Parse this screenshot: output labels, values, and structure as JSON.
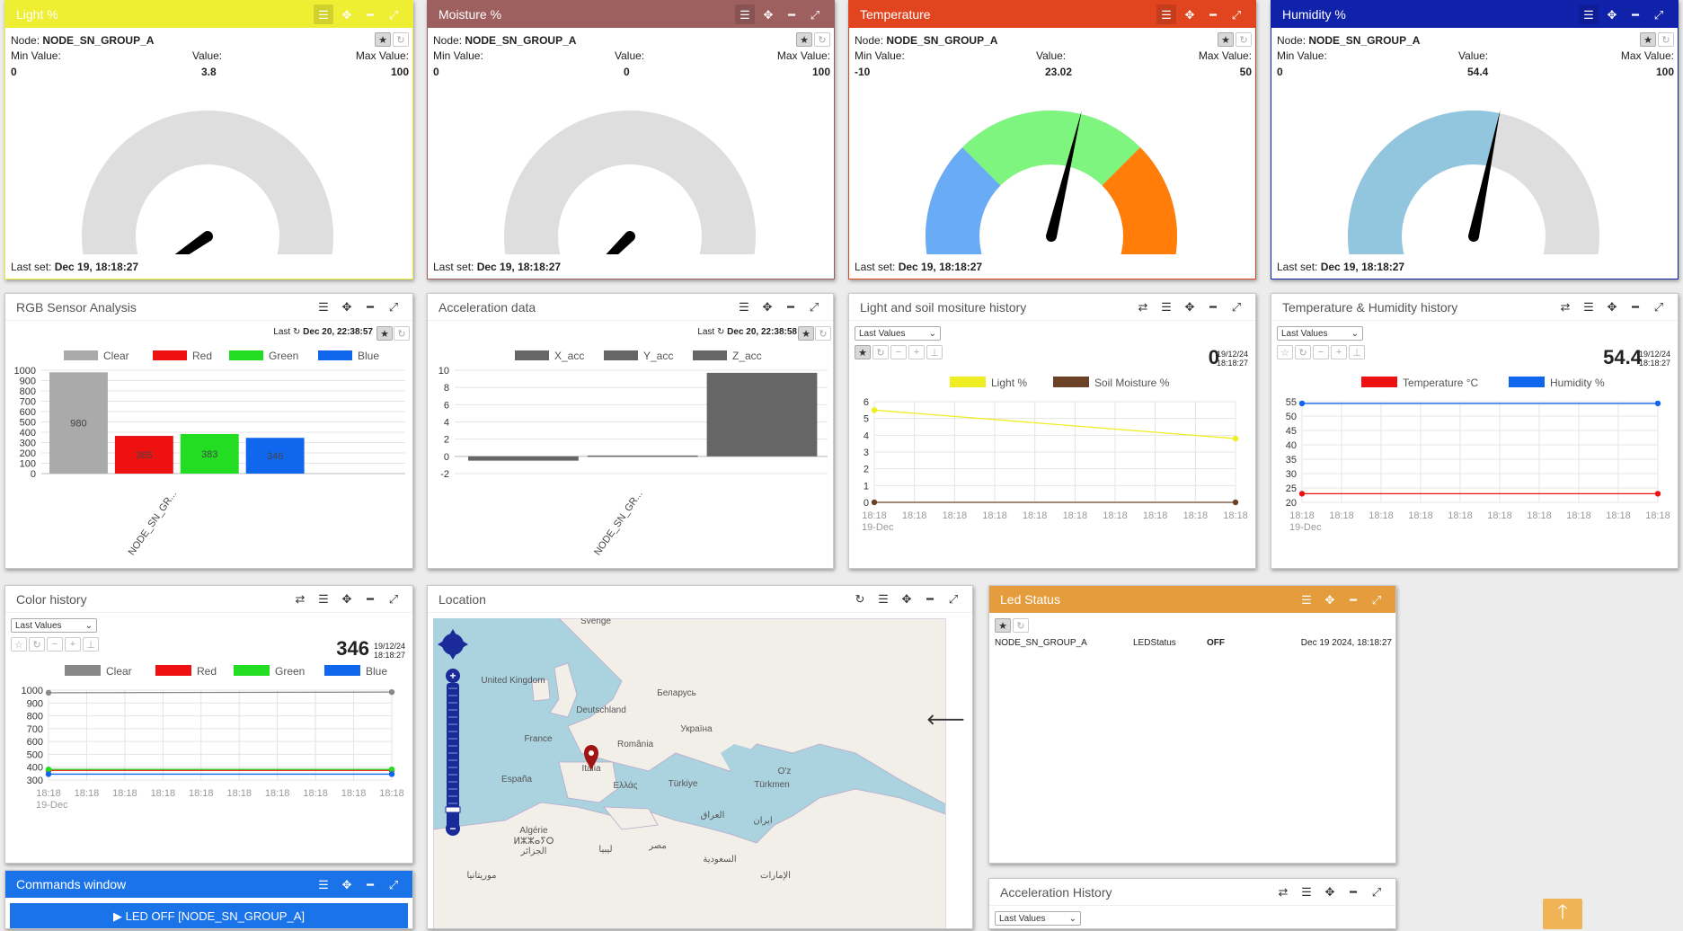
{
  "gauges": [
    {
      "title": "Light %",
      "color": "#eeee33",
      "titleColor": "#ffffff",
      "node_label": "Node:",
      "node": "NODE_SN_GROUP_A",
      "min_label": "Min Value:",
      "value_label": "Value:",
      "max_label": "Max Value:",
      "min": "0",
      "value": "3.8",
      "max": "100",
      "last_label": "Last set:",
      "last": "Dec 19, 18:18:27",
      "fill": "#92c5de"
    },
    {
      "title": "Moisture %",
      "color": "#9e5f5f",
      "titleColor": "#ffffff",
      "node_label": "Node:",
      "node": "NODE_SN_GROUP_A",
      "min_label": "Min Value:",
      "value_label": "Value:",
      "max_label": "Max Value:",
      "min": "0",
      "value": "0",
      "max": "100",
      "last_label": "Last set:",
      "last": "Dec 19, 18:18:27",
      "fill": "#92c5de"
    },
    {
      "title": "Temperature",
      "color": "#e04520",
      "titleColor": "#ffffff",
      "node_label": "Node:",
      "node": "NODE_SN_GROUP_A",
      "min_label": "Min Value:",
      "value_label": "Value:",
      "max_label": "Max Value:",
      "min": "-10",
      "value": "23.02",
      "max": "50",
      "last_label": "Last set:",
      "last": "Dec 19, 18:18:27",
      "fill": "#92c5de"
    },
    {
      "title": "Humidity %",
      "color": "#1122aa",
      "titleColor": "#ffffff",
      "node_label": "Node:",
      "node": "NODE_SN_GROUP_A",
      "min_label": "Min Value:",
      "value_label": "Value:",
      "max_label": "Max Value:",
      "min": "0",
      "value": "54.4",
      "max": "100",
      "last_label": "Last set:",
      "last": "Dec 19, 18:18:27",
      "fill": "#92c5de"
    }
  ],
  "rgb": {
    "title": "RGB Sensor Analysis",
    "last_label": "Last",
    "last": "Dec 20, 22:38:57",
    "xtick": "NODE_SN_GR..."
  },
  "acc": {
    "title": "Acceleration data",
    "last_label": "Last",
    "last": "Dec 20, 22:38:58",
    "xtick": "NODE_SN_GR..."
  },
  "light_hist": {
    "title": "Light and soil mositure history",
    "select": "Last Values",
    "big": "0",
    "date": "19/12/24",
    "time": "18:18:27",
    "date_label": "19-Dec"
  },
  "temp_hist": {
    "title": "Temperature & Humidity history",
    "select": "Last Values",
    "big": "54.4",
    "date": "19/12/24",
    "time": "18:18:27",
    "date_label": "19-Dec"
  },
  "color_hist": {
    "title": "Color history",
    "select": "Last Values",
    "big": "346",
    "date": "19/12/24",
    "time": "18:18:27",
    "date_label": "19-Dec"
  },
  "location": {
    "title": "Location",
    "places": [
      {
        "name": "Sverige",
        "x": 662,
        "y": 0
      },
      {
        "name": "United Kingdom",
        "x": 570,
        "y": 66
      },
      {
        "name": "Беларусь",
        "x": 752,
        "y": 80
      },
      {
        "name": "Deutschland",
        "x": 668,
        "y": 99
      },
      {
        "name": "Україна",
        "x": 774,
        "y": 120
      },
      {
        "name": "France",
        "x": 598,
        "y": 131
      },
      {
        "name": "România",
        "x": 706,
        "y": 137
      },
      {
        "name": "Italia",
        "x": 657,
        "y": 164
      },
      {
        "name": "España",
        "x": 574,
        "y": 176
      },
      {
        "name": "Ελλάς",
        "x": 695,
        "y": 183
      },
      {
        "name": "Türkiye",
        "x": 759,
        "y": 181
      },
      {
        "name": "Türkmen",
        "x": 858,
        "y": 182
      },
      {
        "name": "O'z",
        "x": 872,
        "y": 167
      },
      {
        "name": "العراق",
        "x": 792,
        "y": 216
      },
      {
        "name": "ایران",
        "x": 848,
        "y": 222
      },
      {
        "name": "Algérie",
        "x": 593,
        "y": 233
      },
      {
        "name": "ⵍⵣⵣⴰⵢⵔ",
        "x": 593,
        "y": 245
      },
      {
        "name": "الجزائر",
        "x": 593,
        "y": 256
      },
      {
        "name": "ليبيا",
        "x": 673,
        "y": 254
      },
      {
        "name": "مصر",
        "x": 731,
        "y": 250
      },
      {
        "name": "السعودية",
        "x": 800,
        "y": 265
      },
      {
        "name": "موريتانيا",
        "x": 535,
        "y": 283
      },
      {
        "name": "الإمارات",
        "x": 862,
        "y": 283
      }
    ]
  },
  "led": {
    "title": "Led Status",
    "node": "NODE_SN_GROUP_A",
    "key": "LEDStatus",
    "value": "OFF",
    "time": "Dec 19 2024, 18:18:27"
  },
  "acc_hist": {
    "title": "Acceleration History",
    "select": "Last Values"
  },
  "commands": {
    "title": "Commands window",
    "button": "▶ LED OFF [NODE_SN_GROUP_A]"
  },
  "chart_data": [
    {
      "type": "bar",
      "title": "RGB Sensor Analysis",
      "categories": [
        "NODE_SN_GR..."
      ],
      "series": [
        {
          "name": "Clear",
          "values": [
            980
          ],
          "color": "#aaaaaa"
        },
        {
          "name": "Red",
          "values": [
            365
          ],
          "color": "#ee1111"
        },
        {
          "name": "Green",
          "values": [
            383
          ],
          "color": "#22dd22"
        },
        {
          "name": "Blue",
          "values": [
            346
          ],
          "color": "#1166ee"
        }
      ],
      "ylim": [
        0,
        1000
      ],
      "yticks": [
        0,
        100,
        200,
        300,
        400,
        500,
        600,
        700,
        800,
        900,
        1000
      ],
      "data_labels": [
        "980",
        "365",
        "383",
        "346"
      ]
    },
    {
      "type": "bar",
      "title": "Acceleration data",
      "categories": [
        "NODE_SN_GR..."
      ],
      "series": [
        {
          "name": "X_acc",
          "values": [
            -0.5
          ],
          "color": "#666666"
        },
        {
          "name": "Y_acc",
          "values": [
            0.1
          ],
          "color": "#666666"
        },
        {
          "name": "Z_acc",
          "values": [
            9.7
          ],
          "color": "#666666"
        }
      ],
      "ylim": [
        -2,
        10
      ],
      "yticks": [
        -2,
        0,
        2,
        4,
        6,
        8,
        10
      ]
    },
    {
      "type": "line",
      "title": "Light and soil mositure history",
      "x": [
        "18:18",
        "18:18",
        "18:18",
        "18:18",
        "18:18",
        "18:18",
        "18:18",
        "18:18",
        "18:18",
        "18:18"
      ],
      "series": [
        {
          "name": "Light %",
          "values": [
            5.5,
            null,
            null,
            null,
            null,
            null,
            null,
            null,
            null,
            3.8
          ],
          "color": "#eeee22"
        },
        {
          "name": "Soil Moisture %",
          "values": [
            0,
            null,
            null,
            null,
            null,
            null,
            null,
            null,
            null,
            0
          ],
          "color": "#6b4226"
        }
      ],
      "ylim": [
        0,
        6
      ],
      "yticks": [
        0,
        1,
        2,
        3,
        4,
        5,
        6
      ]
    },
    {
      "type": "line",
      "title": "Temperature & Humidity history",
      "x": [
        "18:18",
        "18:18",
        "18:18",
        "18:18",
        "18:18",
        "18:18",
        "18:18",
        "18:18",
        "18:18",
        "18:18"
      ],
      "series": [
        {
          "name": "Temperature °C",
          "values": [
            23,
            null,
            null,
            null,
            null,
            null,
            null,
            null,
            null,
            23
          ],
          "color": "#ee1111"
        },
        {
          "name": "Humidity %",
          "values": [
            54.4,
            null,
            null,
            null,
            null,
            null,
            null,
            null,
            null,
            54.4
          ],
          "color": "#1166ee"
        }
      ],
      "ylim": [
        20,
        55
      ],
      "yticks": [
        20,
        25,
        30,
        35,
        40,
        45,
        50,
        55
      ]
    },
    {
      "type": "line",
      "title": "Color history",
      "x": [
        "18:18",
        "18:18",
        "18:18",
        "18:18",
        "18:18",
        "18:18",
        "18:18",
        "18:18",
        "18:18",
        "18:18"
      ],
      "series": [
        {
          "name": "Clear",
          "values": [
            980,
            null,
            null,
            null,
            null,
            null,
            null,
            null,
            null,
            985
          ],
          "color": "#888888"
        },
        {
          "name": "Red",
          "values": [
            375,
            null,
            null,
            null,
            null,
            null,
            null,
            null,
            null,
            375
          ],
          "color": "#ee1111"
        },
        {
          "name": "Green",
          "values": [
            383,
            null,
            null,
            null,
            null,
            null,
            null,
            null,
            null,
            383
          ],
          "color": "#22dd22"
        },
        {
          "name": "Blue",
          "values": [
            346,
            null,
            null,
            null,
            null,
            null,
            null,
            null,
            null,
            346
          ],
          "color": "#1166ee"
        }
      ],
      "ylim": [
        300,
        1000
      ],
      "yticks": [
        300,
        400,
        500,
        600,
        700,
        800,
        900,
        1000
      ]
    }
  ]
}
